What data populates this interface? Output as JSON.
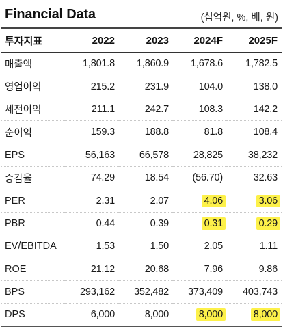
{
  "header": {
    "title": "Financial Data",
    "unit": "(십억원, %, 배, 원)"
  },
  "table": {
    "columns": [
      "투자지표",
      "2022",
      "2023",
      "2024F",
      "2025F"
    ],
    "rows": [
      {
        "label": "매출액",
        "values": [
          "1,801.8",
          "1,860.9",
          "1,678.6",
          "1,782.5"
        ]
      },
      {
        "label": "영업이익",
        "values": [
          "215.2",
          "231.9",
          "104.0",
          "138.0"
        ]
      },
      {
        "label": "세전이익",
        "values": [
          "211.1",
          "242.7",
          "108.3",
          "142.2"
        ]
      },
      {
        "label": "순이익",
        "values": [
          "159.3",
          "188.8",
          "81.8",
          "108.4"
        ]
      },
      {
        "label": "EPS",
        "values": [
          "56,163",
          "66,578",
          "28,825",
          "38,232"
        ]
      },
      {
        "label": "증감율",
        "values": [
          "74.29",
          "18.54",
          "(56.70)",
          "32.63"
        ]
      },
      {
        "label": "PER",
        "values": [
          "2.31",
          "2.07",
          "4.06",
          "3.06"
        ]
      },
      {
        "label": "PBR",
        "values": [
          "0.44",
          "0.39",
          "0.31",
          "0.29"
        ]
      },
      {
        "label": "EV/EBITDA",
        "values": [
          "1.53",
          "1.50",
          "2.05",
          "1.11"
        ]
      },
      {
        "label": "ROE",
        "values": [
          "21.12",
          "20.68",
          "7.96",
          "9.86"
        ]
      },
      {
        "label": "BPS",
        "values": [
          "293,162",
          "352,482",
          "373,409",
          "403,743"
        ]
      },
      {
        "label": "DPS",
        "values": [
          "6,000",
          "8,000",
          "8,000",
          "8,000"
        ]
      }
    ],
    "highlight_color": "#fdf14a"
  }
}
